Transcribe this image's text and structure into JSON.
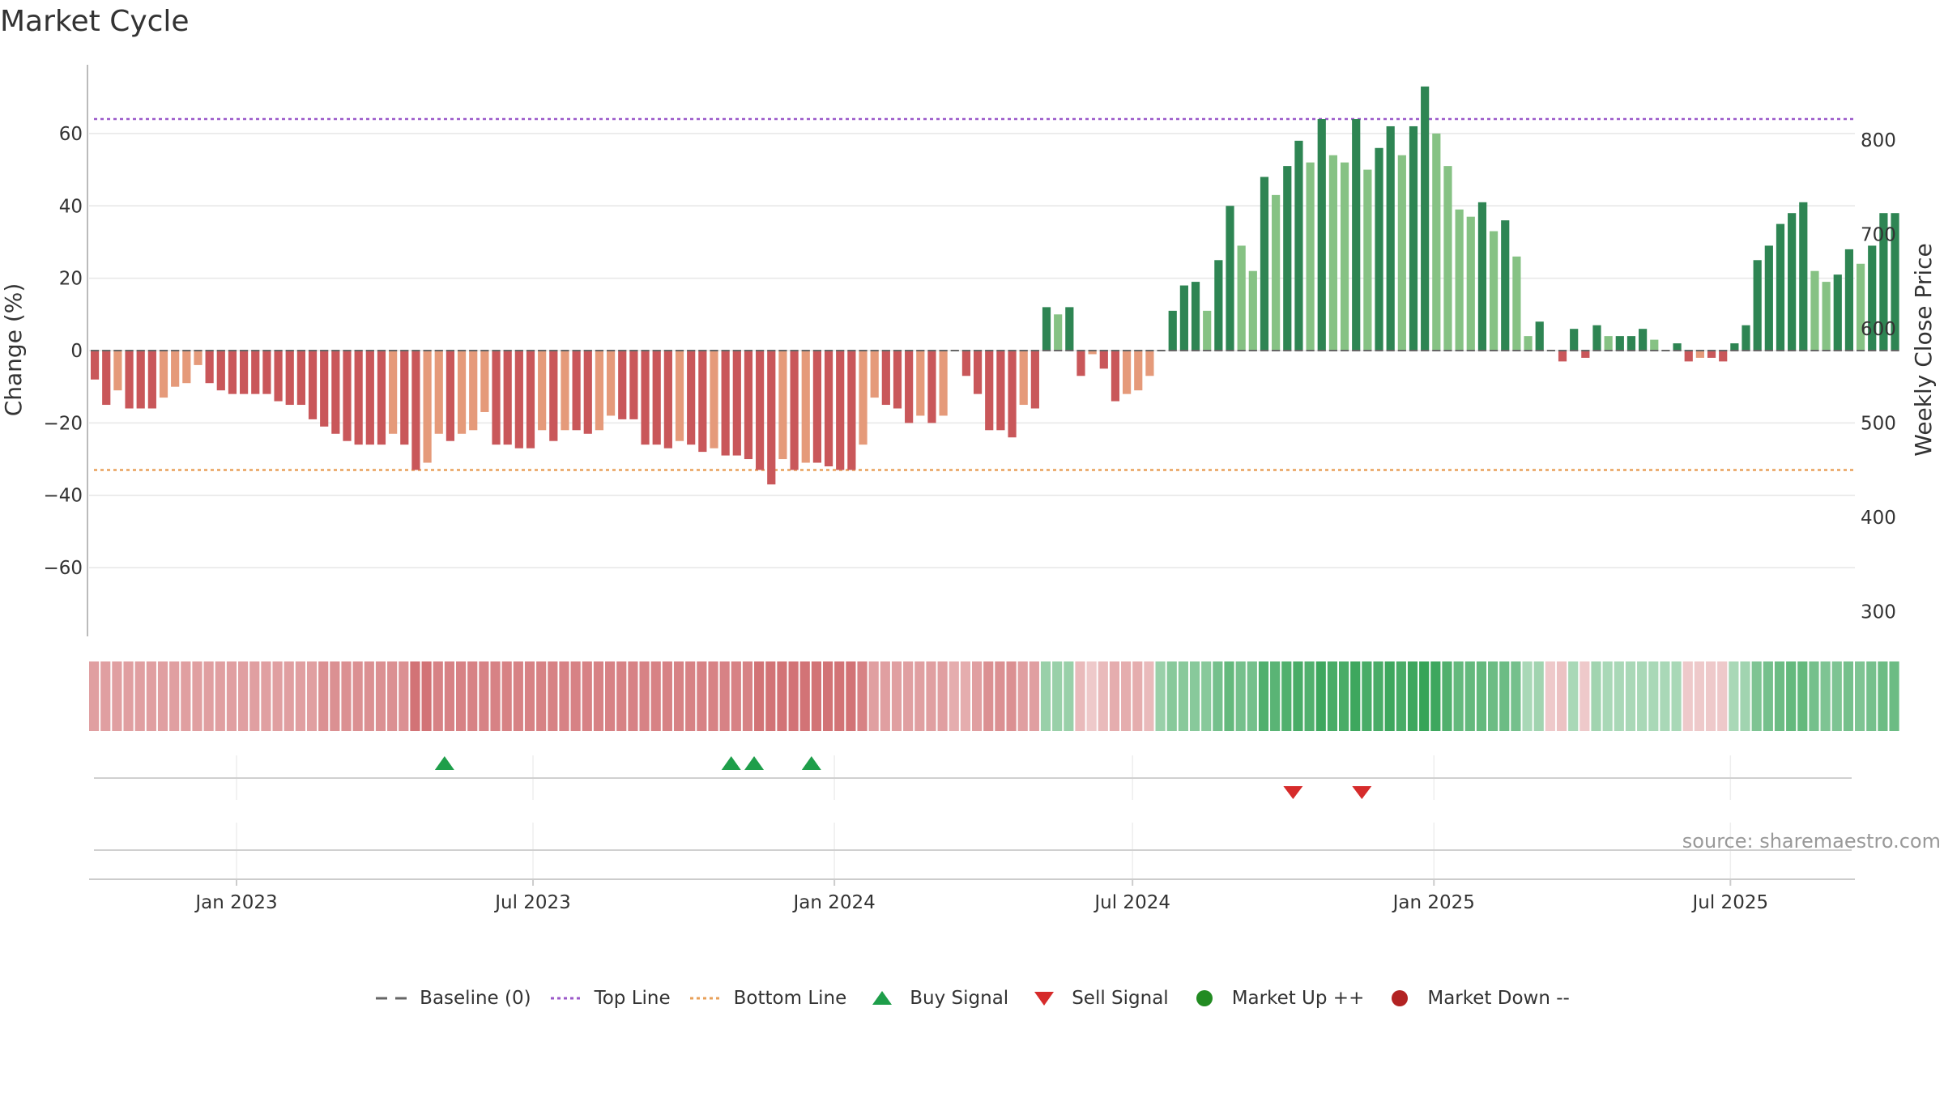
{
  "chart_data": {
    "type": "bar",
    "title": "Market Cycle",
    "ylabel_left": "Change (%)",
    "ylabel_right": "Weekly Close Price",
    "ylim_left": [
      -79,
      79
    ],
    "yticks_left": [
      60,
      40,
      20,
      0,
      -20,
      -40,
      -60
    ],
    "ytick_labels_left": [
      "60",
      "40",
      "20",
      "0",
      "−20",
      "−40",
      "−60"
    ],
    "ylim_right": [
      274,
      880
    ],
    "yticks_right": [
      800,
      700,
      600,
      500,
      400,
      300
    ],
    "xlim": [
      "2022-10-03",
      "2025-09-15"
    ],
    "x_ticks": [
      "2023-01-01",
      "2023-07-01",
      "2024-01-01",
      "2024-07-01",
      "2025-01-01",
      "2025-07-01"
    ],
    "x_tick_labels": [
      "Jan 2023",
      "Jul 2023",
      "Jan 2024",
      "Jul 2024",
      "Jan 2025",
      "Jul 2025"
    ],
    "top_line": 64,
    "bottom_line": -33,
    "grid": true,
    "start_date": "2022-10-03",
    "series": [
      {
        "values": [
          -8,
          -15,
          -11,
          -16,
          -16,
          -16,
          -13,
          -10,
          -9,
          -4,
          -9,
          -11,
          -12,
          -12,
          -12,
          -12,
          -14,
          -15,
          -15,
          -19,
          -21,
          -23,
          -25,
          -26,
          -26,
          -26,
          -23,
          -26,
          -33,
          -31,
          -23,
          -25,
          -23,
          -22,
          -17,
          -26,
          -26,
          -27,
          -27,
          -22,
          -25,
          -22,
          -22,
          -23,
          -22,
          -18,
          -19,
          -19,
          -26,
          -26,
          -27,
          -25,
          -26,
          -28,
          -27,
          -29,
          -29,
          -30,
          -33,
          -37,
          -30,
          -33,
          -31,
          -31,
          -32,
          -33,
          -33,
          -26,
          -13,
          -15,
          -16,
          -20,
          -18,
          -20,
          -18,
          0,
          -7,
          -12,
          -22,
          -22,
          -24,
          -15,
          -16,
          12,
          10,
          12,
          -7,
          -1,
          -5,
          -14,
          -12,
          -11,
          -7,
          0,
          11,
          18,
          19,
          11,
          25,
          40,
          29,
          22,
          48,
          43,
          51,
          58,
          52,
          64,
          54,
          52,
          64,
          50,
          56,
          62,
          54,
          62,
          73,
          60,
          51,
          39,
          37,
          41,
          33,
          36,
          26,
          4,
          8,
          0,
          -3,
          6,
          -2,
          7,
          4,
          4,
          4,
          6,
          3,
          0,
          2,
          -3,
          -2,
          -2,
          -3,
          2,
          7,
          25,
          29,
          35,
          38,
          41,
          22,
          19,
          21,
          28,
          24,
          29,
          38,
          38
        ]
      }
    ],
    "heat_values": [
      -0.5,
      -0.5,
      -0.5,
      -0.5,
      -0.5,
      -0.5,
      -0.5,
      -0.5,
      -0.5,
      -0.5,
      -0.5,
      -0.5,
      -0.5,
      -0.5,
      -0.5,
      -0.5,
      -0.5,
      -0.5,
      -0.5,
      -0.5,
      -0.6,
      -0.6,
      -0.6,
      -0.6,
      -0.6,
      -0.6,
      -0.6,
      -0.6,
      -0.8,
      -0.8,
      -0.7,
      -0.7,
      -0.7,
      -0.7,
      -0.7,
      -0.7,
      -0.7,
      -0.7,
      -0.7,
      -0.7,
      -0.7,
      -0.7,
      -0.7,
      -0.7,
      -0.7,
      -0.7,
      -0.7,
      -0.7,
      -0.7,
      -0.7,
      -0.7,
      -0.7,
      -0.7,
      -0.7,
      -0.7,
      -0.7,
      -0.7,
      -0.7,
      -0.8,
      -0.8,
      -0.8,
      -0.8,
      -0.8,
      -0.8,
      -0.8,
      -0.8,
      -0.8,
      -0.7,
      -0.5,
      -0.5,
      -0.5,
      -0.5,
      -0.5,
      -0.5,
      -0.5,
      -0.4,
      -0.4,
      -0.5,
      -0.6,
      -0.6,
      -0.6,
      -0.5,
      -0.5,
      0.4,
      0.4,
      0.4,
      -0.3,
      -0.2,
      -0.3,
      -0.4,
      -0.4,
      -0.4,
      -0.3,
      0.4,
      0.5,
      0.5,
      0.5,
      0.5,
      0.6,
      0.7,
      0.6,
      0.6,
      0.8,
      0.75,
      0.8,
      0.85,
      0.8,
      0.9,
      0.85,
      0.85,
      0.9,
      0.85,
      0.85,
      0.9,
      0.85,
      0.9,
      0.95,
      0.9,
      0.8,
      0.7,
      0.7,
      0.7,
      0.65,
      0.65,
      0.6,
      0.3,
      0.35,
      -0.2,
      -0.25,
      0.3,
      -0.2,
      0.35,
      0.3,
      0.3,
      0.3,
      0.3,
      0.3,
      0.3,
      0.3,
      -0.2,
      -0.2,
      -0.2,
      -0.2,
      0.3,
      0.35,
      0.55,
      0.6,
      0.65,
      0.7,
      0.7,
      0.6,
      0.55,
      0.55,
      0.6,
      0.55,
      0.6,
      0.65,
      0.65
    ],
    "buy_signals": [
      "2023-05-08",
      "2023-10-30",
      "2023-11-13",
      "2023-12-18"
    ],
    "sell_signals": [
      "2024-10-07",
      "2024-11-18"
    ],
    "colors": {
      "neg_dark": "#c9575a",
      "neg_light": "#e59a7a",
      "pos_dark": "#2e8553",
      "pos_light": "#86c284",
      "top_line": "#9b59c9",
      "bottom_line": "#e8a05a",
      "baseline": "#666666",
      "buy": "#1e9e4a",
      "sell": "#d62b2b",
      "market_up": "#228b22",
      "market_down": "#b22222",
      "grid": "#e6e6e6"
    }
  },
  "source_text": "source: sharemaestro.com",
  "legend": [
    {
      "icon": "dashed-line-icon",
      "label": "Baseline (0)",
      "color": "#666666"
    },
    {
      "icon": "dotted-line-icon",
      "label": "Top Line",
      "color": "#9b59c9"
    },
    {
      "icon": "dotted-line-icon",
      "label": "Bottom Line",
      "color": "#e8a05a"
    },
    {
      "icon": "triangle-up-icon",
      "label": "Buy Signal",
      "color": "#1e9e4a"
    },
    {
      "icon": "triangle-down-icon",
      "label": "Sell Signal",
      "color": "#d62b2b"
    },
    {
      "icon": "circle-icon",
      "label": "Market Up ++",
      "color": "#228b22"
    },
    {
      "icon": "circle-icon",
      "label": "Market Down --",
      "color": "#b22222"
    }
  ]
}
